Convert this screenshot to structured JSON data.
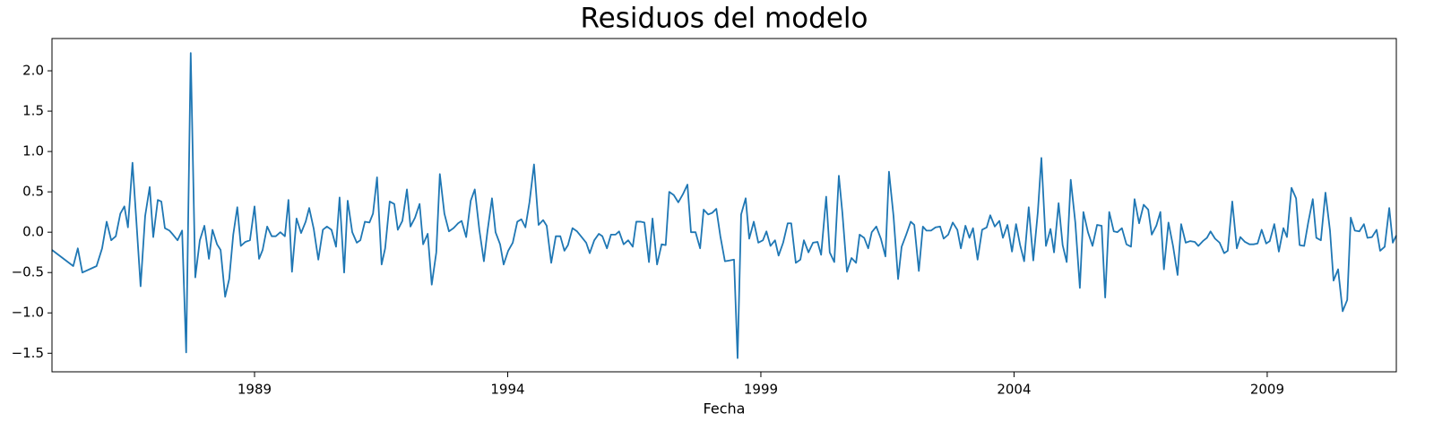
{
  "chart_data": {
    "type": "line",
    "title": "Residuos del modelo",
    "x_label": "Fecha",
    "xlim": [
      1985,
      2011.55
    ],
    "xticks": [
      1989,
      1994,
      1999,
      2004,
      2009
    ],
    "ylim": [
      -1.73,
      2.4
    ],
    "yticks": [
      {
        "value": -1.5,
        "label": "−1.5"
      },
      {
        "value": -1.0,
        "label": "−1.0"
      },
      {
        "value": -0.5,
        "label": "−0.5"
      },
      {
        "value": 0.0,
        "label": "0.0"
      },
      0.5,
      {
        "value": 1.0,
        "label": "1.0"
      },
      1.5,
      {
        "value": 2.0,
        "label": "2.0"
      }
    ],
    "series": [
      {
        "color": "#1f77b4",
        "x": [
          1985.0,
          1985.42,
          1985.51,
          1985.6,
          1985.88,
          1985.99,
          1986.08,
          1986.17,
          1986.26,
          1986.35,
          1986.43,
          1986.5,
          1986.59,
          1986.66,
          1986.75,
          1986.84,
          1986.93,
          1987.0,
          1987.09,
          1987.16,
          1987.23,
          1987.32,
          1987.39,
          1987.48,
          1987.57,
          1987.65,
          1987.74,
          1987.83,
          1987.92,
          1988.01,
          1988.1,
          1988.17,
          1988.26,
          1988.33,
          1988.42,
          1988.5,
          1988.58,
          1988.66,
          1988.73,
          1988.82,
          1988.91,
          1989.0,
          1989.09,
          1989.16,
          1989.25,
          1989.34,
          1989.42,
          1989.51,
          1989.6,
          1989.67,
          1989.74,
          1989.83,
          1989.92,
          1990.01,
          1990.08,
          1990.17,
          1990.26,
          1990.35,
          1990.43,
          1990.52,
          1990.61,
          1990.68,
          1990.77,
          1990.84,
          1990.93,
          1991.02,
          1991.09,
          1991.18,
          1991.27,
          1991.34,
          1991.42,
          1991.51,
          1991.58,
          1991.67,
          1991.76,
          1991.83,
          1991.92,
          1992.01,
          1992.08,
          1992.17,
          1992.26,
          1992.33,
          1992.42,
          1992.5,
          1992.59,
          1992.66,
          1992.75,
          1992.84,
          1992.93,
          1993.02,
          1993.09,
          1993.18,
          1993.27,
          1993.35,
          1993.44,
          1993.53,
          1993.6,
          1993.69,
          1993.76,
          1993.85,
          1993.92,
          1994.01,
          1994.1,
          1994.19,
          1994.27,
          1994.35,
          1994.43,
          1994.52,
          1994.61,
          1994.7,
          1994.77,
          1994.86,
          1994.95,
          1995.04,
          1995.12,
          1995.19,
          1995.28,
          1995.37,
          1995.46,
          1995.55,
          1995.62,
          1995.71,
          1995.8,
          1995.87,
          1995.96,
          1996.04,
          1996.13,
          1996.2,
          1996.29,
          1996.38,
          1996.47,
          1996.54,
          1996.63,
          1996.7,
          1996.79,
          1996.86,
          1996.95,
          1997.04,
          1997.12,
          1997.19,
          1997.28,
          1997.37,
          1997.46,
          1997.55,
          1997.62,
          1997.71,
          1997.8,
          1997.87,
          1997.96,
          1998.04,
          1998.12,
          1998.2,
          1998.29,
          1998.38,
          1998.47,
          1998.54,
          1998.61,
          1998.7,
          1998.77,
          1998.86,
          1998.95,
          1999.04,
          1999.11,
          1999.19,
          1999.28,
          1999.35,
          1999.44,
          1999.53,
          1999.6,
          1999.69,
          1999.78,
          1999.85,
          1999.94,
          2000.03,
          2000.12,
          2000.19,
          2000.29,
          2000.36,
          2000.45,
          2000.54,
          2000.61,
          2000.7,
          2000.79,
          2000.88,
          2000.95,
          2001.04,
          2001.12,
          2001.19,
          2001.28,
          2001.37,
          2001.46,
          2001.53,
          2001.62,
          2001.71,
          2001.78,
          2001.87,
          2001.96,
          2002.03,
          2002.12,
          2002.2,
          2002.27,
          2002.36,
          2002.45,
          2002.54,
          2002.61,
          2002.7,
          2002.79,
          2002.88,
          2002.95,
          2003.04,
          2003.12,
          2003.19,
          2003.28,
          2003.37,
          2003.46,
          2003.53,
          2003.62,
          2003.71,
          2003.78,
          2003.87,
          2003.96,
          2004.04,
          2004.12,
          2004.2,
          2004.29,
          2004.38,
          2004.47,
          2004.54,
          2004.63,
          2004.72,
          2004.79,
          2004.88,
          2004.96,
          2005.04,
          2005.12,
          2005.21,
          2005.3,
          2005.37,
          2005.46,
          2005.55,
          2005.64,
          2005.73,
          2005.8,
          2005.88,
          2005.97,
          2006.04,
          2006.13,
          2006.22,
          2006.31,
          2006.38,
          2006.47,
          2006.56,
          2006.65,
          2006.72,
          2006.81,
          2006.89,
          2006.96,
          2007.05,
          2007.14,
          2007.23,
          2007.3,
          2007.39,
          2007.48,
          2007.57,
          2007.64,
          2007.73,
          2007.81,
          2007.88,
          2007.97,
          2008.06,
          2008.15,
          2008.22,
          2008.31,
          2008.4,
          2008.47,
          2008.56,
          2008.65,
          2008.73,
          2008.81,
          2008.89,
          2008.98,
          2009.05,
          2009.14,
          2009.23,
          2009.32,
          2009.39,
          2009.48,
          2009.57,
          2009.64,
          2009.73,
          2009.81,
          2009.9,
          2009.97,
          2010.06,
          2010.15,
          2010.24,
          2010.31,
          2010.4,
          2010.49,
          2010.58,
          2010.65,
          2010.73,
          2010.82,
          2010.91,
          2010.98,
          2011.07,
          2011.16,
          2011.23,
          2011.32,
          2011.41,
          2011.48,
          2011.55
        ],
        "values": [
          -0.22,
          -0.42,
          -0.2,
          -0.5,
          -0.42,
          -0.2,
          0.13,
          -0.1,
          -0.05,
          0.23,
          0.32,
          0.06,
          0.86,
          0.2,
          -0.67,
          0.2,
          0.56,
          -0.06,
          0.4,
          0.38,
          0.05,
          0.02,
          -0.03,
          -0.1,
          0.02,
          -1.49,
          2.22,
          -0.56,
          -0.1,
          0.08,
          -0.33,
          0.03,
          -0.15,
          -0.22,
          -0.8,
          -0.58,
          -0.03,
          0.31,
          -0.17,
          -0.12,
          -0.1,
          0.32,
          -0.33,
          -0.22,
          0.07,
          -0.05,
          -0.05,
          0.0,
          -0.05,
          0.4,
          -0.49,
          0.17,
          -0.01,
          0.13,
          0.3,
          0.04,
          -0.34,
          0.03,
          0.07,
          0.03,
          -0.18,
          0.43,
          -0.5,
          0.39,
          0.0,
          -0.13,
          -0.1,
          0.13,
          0.12,
          0.23,
          0.68,
          -0.4,
          -0.2,
          0.38,
          0.35,
          0.03,
          0.14,
          0.53,
          0.07,
          0.18,
          0.35,
          -0.15,
          -0.02,
          -0.65,
          -0.25,
          0.72,
          0.23,
          0.01,
          0.05,
          0.11,
          0.14,
          -0.06,
          0.39,
          0.53,
          0.03,
          -0.36,
          0.01,
          0.42,
          0.0,
          -0.15,
          -0.4,
          -0.23,
          -0.13,
          0.13,
          0.16,
          0.06,
          0.37,
          0.84,
          0.09,
          0.15,
          0.08,
          -0.38,
          -0.05,
          -0.05,
          -0.23,
          -0.16,
          0.05,
          0.01,
          -0.06,
          -0.13,
          -0.26,
          -0.1,
          -0.02,
          -0.05,
          -0.2,
          -0.03,
          -0.03,
          0.01,
          -0.15,
          -0.1,
          -0.18,
          0.13,
          0.13,
          0.12,
          -0.37,
          0.17,
          -0.4,
          -0.15,
          -0.16,
          0.5,
          0.46,
          0.37,
          0.47,
          0.59,
          0.0,
          0.0,
          -0.2,
          0.28,
          0.22,
          0.24,
          0.29,
          -0.05,
          -0.36,
          -0.35,
          -0.34,
          -1.56,
          0.22,
          0.42,
          -0.08,
          0.13,
          -0.13,
          -0.1,
          0.01,
          -0.17,
          -0.1,
          -0.29,
          -0.13,
          0.11,
          0.11,
          -0.38,
          -0.34,
          -0.1,
          -0.25,
          -0.13,
          -0.12,
          -0.28,
          0.44,
          -0.25,
          -0.37,
          0.7,
          0.24,
          -0.49,
          -0.32,
          -0.38,
          -0.03,
          -0.07,
          -0.2,
          0.0,
          0.07,
          -0.08,
          -0.3,
          0.75,
          0.2,
          -0.58,
          -0.18,
          -0.03,
          0.13,
          0.09,
          -0.48,
          0.07,
          0.02,
          0.02,
          0.06,
          0.07,
          -0.08,
          -0.03,
          0.12,
          0.03,
          -0.2,
          0.08,
          -0.07,
          0.05,
          -0.34,
          0.03,
          0.06,
          0.21,
          0.07,
          0.14,
          -0.07,
          0.09,
          -0.24,
          0.1,
          -0.16,
          -0.36,
          0.31,
          -0.35,
          0.25,
          0.92,
          -0.17,
          0.04,
          -0.25,
          0.36,
          -0.16,
          -0.37,
          0.65,
          0.12,
          -0.69,
          0.25,
          0.0,
          -0.17,
          0.09,
          0.08,
          -0.81,
          0.25,
          0.01,
          0.0,
          0.05,
          -0.15,
          -0.18,
          0.41,
          0.11,
          0.34,
          0.28,
          -0.03,
          0.08,
          0.25,
          -0.46,
          0.12,
          -0.17,
          -0.53,
          0.1,
          -0.13,
          -0.11,
          -0.12,
          -0.17,
          -0.11,
          -0.07,
          0.01,
          -0.08,
          -0.13,
          -0.26,
          -0.23,
          0.38,
          -0.2,
          -0.06,
          -0.12,
          -0.15,
          -0.15,
          -0.14,
          0.03,
          -0.14,
          -0.11,
          0.1,
          -0.24,
          0.05,
          -0.06,
          0.55,
          0.42,
          -0.16,
          -0.17,
          0.12,
          0.41,
          -0.07,
          -0.1,
          0.49,
          0.02,
          -0.6,
          -0.46,
          -0.98,
          -0.84,
          0.18,
          0.02,
          0.01,
          0.1,
          -0.07,
          -0.06,
          0.03,
          -0.23,
          -0.18,
          0.3,
          -0.13,
          -0.04
        ]
      }
    ]
  }
}
